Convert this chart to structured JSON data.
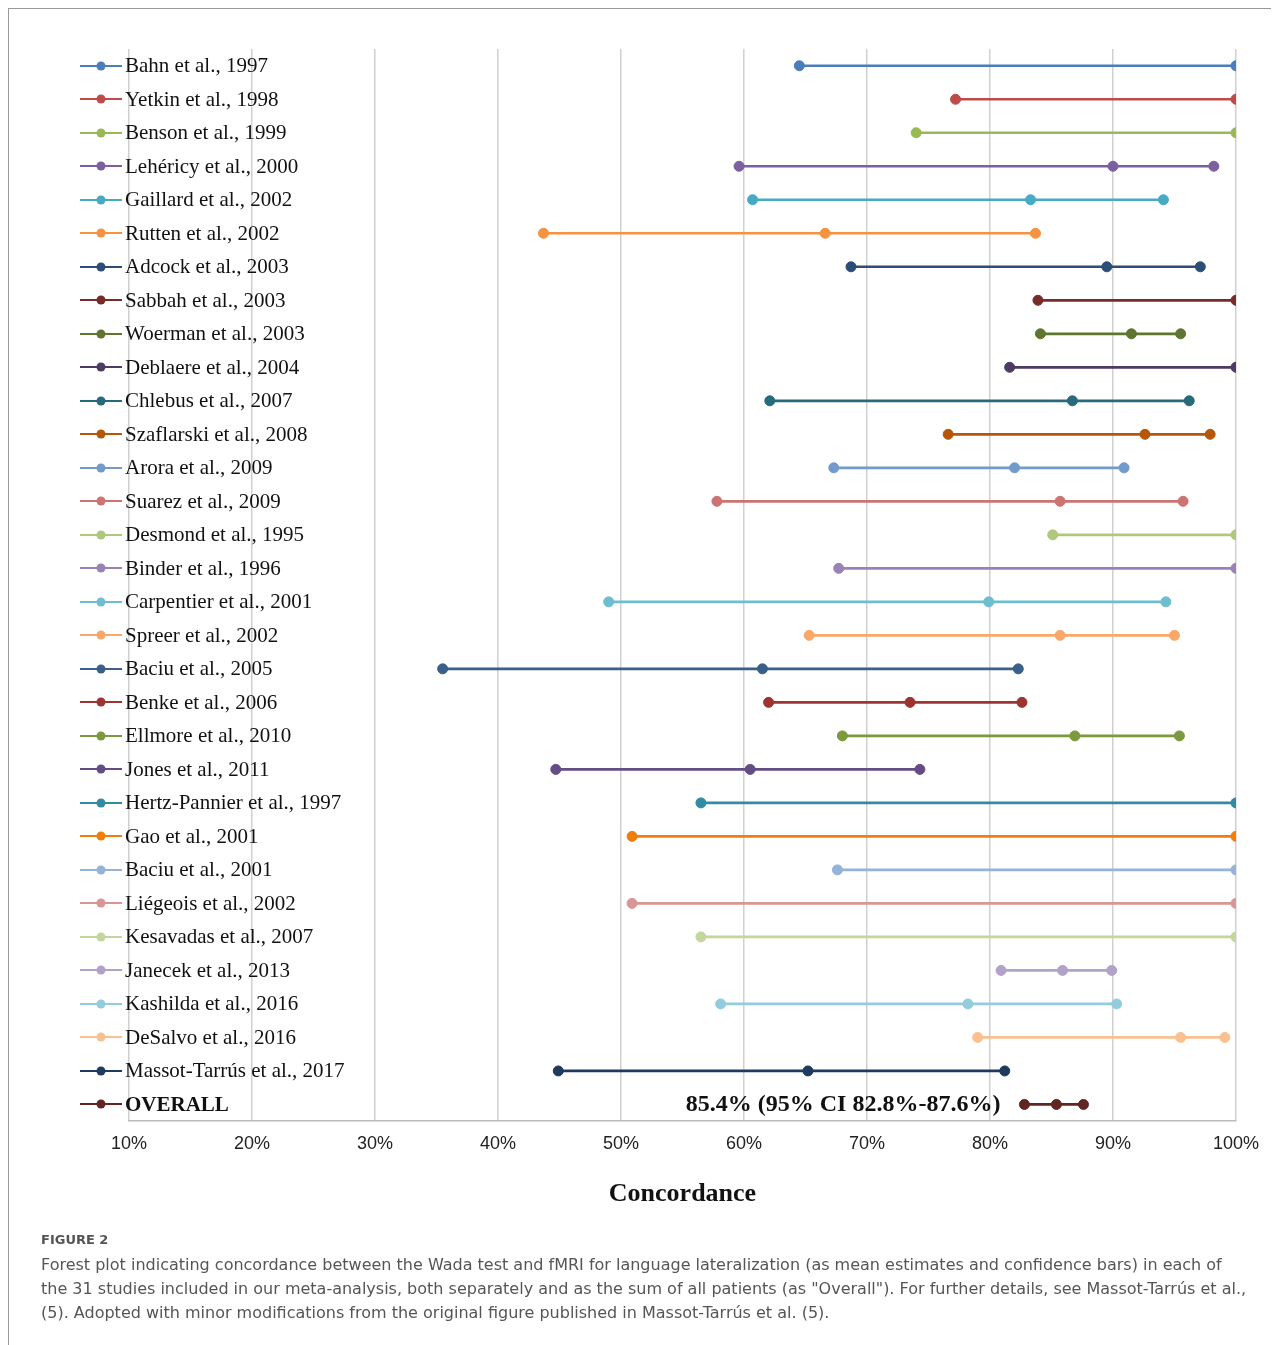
{
  "chart_data": {
    "type": "bar",
    "orientation": "horizontal",
    "marker": "circle",
    "grid": "x",
    "xlabel": "Concordance",
    "xlim": [
      10,
      100
    ],
    "xticks": [
      {
        "value": 10,
        "label": "10%"
      },
      {
        "value": 20,
        "label": "20%"
      },
      {
        "value": 30,
        "label": "30%"
      },
      {
        "value": 40,
        "label": "40%"
      },
      {
        "value": 50,
        "label": "50%"
      },
      {
        "value": 60,
        "label": "60%"
      },
      {
        "value": 70,
        "label": "70%"
      },
      {
        "value": 80,
        "label": "80%"
      },
      {
        "value": 90,
        "label": "90%"
      },
      {
        "value": 100,
        "label": "100%"
      }
    ],
    "categories": [
      "Bahn et al., 1997",
      "Yetkin et al., 1998",
      "Benson et al., 1999",
      "Lehéricy et al., 2000",
      "Gaillard et al., 2002",
      "Rutten et al., 2002",
      "Adcock et al., 2003",
      "Sabbah et al., 2003",
      "Woerman et al., 2003",
      "Deblaere et al., 2004",
      "Chlebus et al., 2007",
      "Szaflarski et al., 2008",
      "Arora et al., 2009",
      "Suarez et al., 2009",
      "Desmond et al., 1995",
      "Binder et al., 1996",
      "Carpentier et al., 2001",
      "Spreer et al., 2002",
      "Baciu et al., 2005",
      "Benke et al., 2006",
      "Ellmore et al., 2010",
      "Jones et al., 2011",
      "Hertz-Pannier et al., 1997",
      "Gao et al., 2001",
      "Baciu et al., 2001",
      "Liégeois et al., 2002",
      "Kesavadas et al., 2007",
      "Janecek et al., 2013",
      "Kashilda et al., 2016",
      "DeSalvo et al., 2016",
      "Massot-Tarrús et al., 2017",
      "OVERALL"
    ],
    "series": [
      {
        "type": "bar",
        "base": [
          64.5,
          77.2,
          74.0,
          59.6,
          60.7,
          43.7,
          68.7,
          83.9,
          84.1,
          81.6,
          62.1,
          76.6,
          67.3,
          57.8,
          85.1,
          67.7,
          49.0,
          65.3,
          35.5,
          62.0,
          68.0,
          44.7,
          56.5,
          50.9,
          67.6,
          50.9,
          56.5,
          80.9,
          58.1,
          79.0,
          44.9,
          82.8
        ],
        "values": [
          35.5,
          22.8,
          26.0,
          38.6,
          33.4,
          40.0,
          28.4,
          16.1,
          11.4,
          18.4,
          34.1,
          21.3,
          23.6,
          37.9,
          14.9,
          32.3,
          45.3,
          29.7,
          46.8,
          20.6,
          27.4,
          29.6,
          43.5,
          49.1,
          32.4,
          49.1,
          43.5,
          9.0,
          32.2,
          20.1,
          36.3,
          4.8
        ],
        "colors": [
          "#4a7ebb",
          "#be4b48",
          "#98b954",
          "#7d5fa0",
          "#46aac5",
          "#f69240",
          "#2c4d75",
          "#772c2a",
          "#5f7530",
          "#4d3b62",
          "#276a7c",
          "#b65708",
          "#729aca",
          "#cd7371",
          "#afc97a",
          "#9983b5",
          "#6fbdd1",
          "#f9a869",
          "#3a5f8b",
          "#9d3431",
          "#7c9a3d",
          "#644c84",
          "#338aa3",
          "#f07f09",
          "#95b3d7",
          "#d99694",
          "#c3d69b",
          "#b3a2c7",
          "#93cddd",
          "#fac090",
          "#1f3a5f",
          "#632523"
        ]
      },
      {
        "type": "scatter",
        "values": [
          64.5,
          77.2,
          74.0,
          59.6,
          60.7,
          43.7,
          68.7,
          83.9,
          84.1,
          81.6,
          62.1,
          76.6,
          67.3,
          57.8,
          85.1,
          67.7,
          49.0,
          65.3,
          35.5,
          62.0,
          68.0,
          44.7,
          56.5,
          50.9,
          67.6,
          50.9,
          56.5,
          80.9,
          58.1,
          79.0,
          44.9,
          82.8
        ],
        "colors": [
          "#4a7ebb",
          "#be4b48",
          "#98b954",
          "#7d5fa0",
          "#46aac5",
          "#f69240",
          "#2c4d75",
          "#772c2a",
          "#5f7530",
          "#4d3b62",
          "#276a7c",
          "#b65708",
          "#729aca",
          "#cd7371",
          "#afc97a",
          "#9983b5",
          "#6fbdd1",
          "#f9a869",
          "#3a5f8b",
          "#9d3431",
          "#7c9a3d",
          "#644c84",
          "#338aa3",
          "#f07f09",
          "#95b3d7",
          "#d99694",
          "#c3d69b",
          "#b3a2c7",
          "#93cddd",
          "#fac090",
          "#1f3a5f",
          "#632523"
        ]
      },
      {
        "type": "scatter",
        "values": [
          null,
          null,
          null,
          90.0,
          83.3,
          66.6,
          89.5,
          null,
          91.5,
          null,
          86.7,
          92.6,
          82.0,
          85.7,
          null,
          null,
          79.9,
          85.7,
          61.5,
          73.5,
          86.9,
          60.5,
          null,
          null,
          null,
          null,
          null,
          85.9,
          78.2,
          95.5,
          65.2,
          85.4
        ],
        "colors": [
          "#4a7ebb",
          "#be4b48",
          "#98b954",
          "#7d5fa0",
          "#46aac5",
          "#f69240",
          "#2c4d75",
          "#772c2a",
          "#5f7530",
          "#4d3b62",
          "#276a7c",
          "#b65708",
          "#729aca",
          "#cd7371",
          "#afc97a",
          "#9983b5",
          "#6fbdd1",
          "#f9a869",
          "#3a5f8b",
          "#9d3431",
          "#7c9a3d",
          "#644c84",
          "#338aa3",
          "#f07f09",
          "#95b3d7",
          "#d99694",
          "#c3d69b",
          "#b3a2c7",
          "#93cddd",
          "#fac090",
          "#1f3a5f",
          "#632523"
        ]
      },
      {
        "type": "scatter",
        "values": [
          100,
          100,
          100,
          98.2,
          94.1,
          83.7,
          97.1,
          100,
          95.5,
          100,
          96.2,
          97.9,
          90.9,
          95.7,
          100,
          100,
          94.3,
          95.0,
          82.3,
          82.6,
          95.4,
          74.3,
          100,
          100,
          100,
          100,
          100,
          89.9,
          90.3,
          99.1,
          81.2,
          87.6
        ],
        "colors": [
          "#4a7ebb",
          "#be4b48",
          "#98b954",
          "#7d5fa0",
          "#46aac5",
          "#f69240",
          "#2c4d75",
          "#772c2a",
          "#5f7530",
          "#4d3b62",
          "#276a7c",
          "#b65708",
          "#729aca",
          "#cd7371",
          "#afc97a",
          "#9983b5",
          "#6fbdd1",
          "#f9a869",
          "#3a5f8b",
          "#9d3431",
          "#7c9a3d",
          "#644c84",
          "#338aa3",
          "#f07f09",
          "#95b3d7",
          "#d99694",
          "#c3d69b",
          "#b3a2c7",
          "#93cddd",
          "#fac090",
          "#1f3a5f",
          "#632523"
        ]
      }
    ],
    "annotations": [
      {
        "text": "85.4% (95% CI 82.8%-87.6%)",
        "x": 85.4,
        "y": "OVERALL"
      },
      "FIGURE 2",
      "Forest plot indicating concordance between the Wada test and fMRI for language lateralization (as mean estimates and confidence bars) in each of the 31 studies included in our meta-analysis, both separately and as the sum of all patients (as \"Overall\"). For further details, see Massot-Tarrús et al., (5). Adopted with minor modifications from the original figure published in Massot-Tarrús et al. (5)."
    ]
  }
}
